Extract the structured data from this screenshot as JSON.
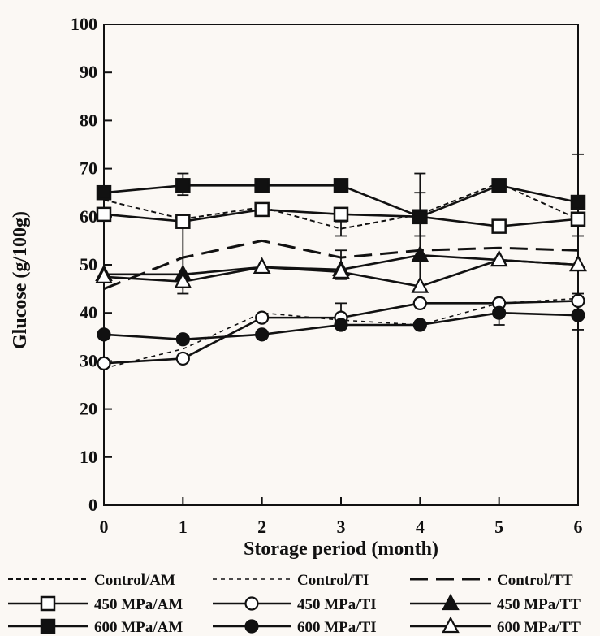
{
  "chart_data": {
    "type": "line",
    "title": "",
    "xlabel": "Storage period (month)",
    "ylabel": "Glucose (g/100g)",
    "x": [
      0,
      1,
      2,
      3,
      4,
      5,
      6
    ],
    "xlim": [
      0,
      6
    ],
    "ylim": [
      0,
      100
    ],
    "xticks": [
      "0",
      "1",
      "2",
      "3",
      "4",
      "5",
      "6"
    ],
    "yticks": [
      "0",
      "10",
      "20",
      "30",
      "40",
      "50",
      "60",
      "70",
      "80",
      "90",
      "100"
    ],
    "grid": false,
    "legend_position": "bottom",
    "series": [
      {
        "name": "Control/AM",
        "values": [
          63.5,
          59.5,
          62,
          57.5,
          60.5,
          67,
          59.5
        ],
        "line": "dotted",
        "marker": "none"
      },
      {
        "name": "Control/TI",
        "values": [
          28.5,
          32.5,
          40,
          38.5,
          37.5,
          42,
          43
        ],
        "line": "dashed",
        "marker": "none"
      },
      {
        "name": "Control/TT",
        "values": [
          45,
          51.5,
          55,
          51.5,
          53,
          53.5,
          53
        ],
        "line": "longdash",
        "marker": "none"
      },
      {
        "name": "450 MPa/AM",
        "values": [
          60.5,
          59,
          61.5,
          60.5,
          60,
          58,
          59.5
        ],
        "line": "solid",
        "marker": "square-open"
      },
      {
        "name": "450 MPa/TI",
        "values": [
          29.5,
          30.5,
          39,
          39,
          42,
          42,
          42.5
        ],
        "line": "solid",
        "marker": "circle-open"
      },
      {
        "name": "450 MPa/TT",
        "values": [
          48,
          48,
          49.5,
          49,
          52,
          51,
          50
        ],
        "line": "solid",
        "marker": "triangle-filled"
      },
      {
        "name": "600 MPa/AM",
        "values": [
          65,
          66.5,
          66.5,
          66.5,
          60,
          66.5,
          63
        ],
        "line": "solid",
        "marker": "square-filled"
      },
      {
        "name": "600 MPa/TI",
        "values": [
          35.5,
          34.5,
          35.5,
          37.5,
          37.5,
          40,
          39.5
        ],
        "line": "solid",
        "marker": "circle-filled"
      },
      {
        "name": "600 MPa/TT",
        "values": [
          47.5,
          46.5,
          49.5,
          48.5,
          45.5,
          51,
          50
        ],
        "line": "solid",
        "marker": "triangle-open"
      }
    ],
    "error_bars": [
      {
        "series": "600 MPa/AM",
        "x": 1,
        "low": 64.5,
        "high": 69
      },
      {
        "series": "450 MPa/AM",
        "x": 1,
        "low": 44,
        "high": 60
      },
      {
        "series": "Control/AM",
        "x": 3,
        "low": 56,
        "high": 59
      },
      {
        "series": "450 MPa/TT",
        "x": 3,
        "low": 47,
        "high": 53
      },
      {
        "series": "450 MPa/TI",
        "x": 3,
        "low": 37,
        "high": 42
      },
      {
        "series": "450 MPa/AM",
        "x": 4,
        "low": 56,
        "high": 69
      },
      {
        "series": "450 MPa/TT",
        "x": 4,
        "low": 45,
        "high": 65
      },
      {
        "series": "600 MPa/TI",
        "x": 5,
        "low": 37.5,
        "high": 42
      },
      {
        "series": "600 MPa/AM",
        "x": 6,
        "low": 56,
        "high": 73
      },
      {
        "series": "600 MPa/TI",
        "x": 6,
        "low": 36.5,
        "high": 44
      }
    ]
  }
}
